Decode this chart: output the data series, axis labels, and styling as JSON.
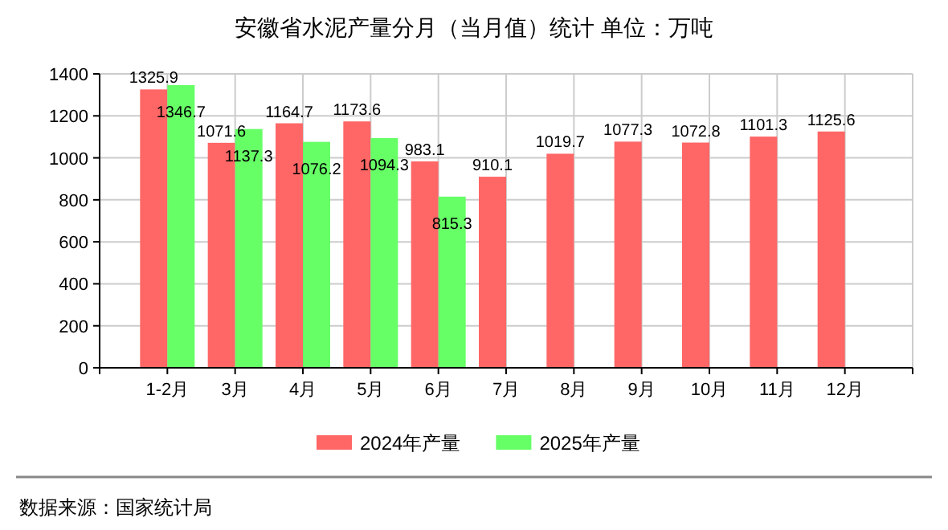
{
  "chart_data": {
    "type": "bar",
    "title": "安徽省水泥产量分月（当月值）统计  单位：万吨",
    "categories": [
      "1-2月",
      "3月",
      "4月",
      "5月",
      "6月",
      "7月",
      "8月",
      "9月",
      "10月",
      "11月",
      "12月"
    ],
    "series": [
      {
        "name": "2024年产量",
        "color": "#ff6666",
        "values": [
          1325.9,
          1071.6,
          1164.7,
          1173.6,
          983.1,
          910.1,
          1019.7,
          1077.3,
          1072.8,
          1101.3,
          1125.6
        ]
      },
      {
        "name": "2025年产量",
        "color": "#66ff66",
        "values": [
          1346.7,
          1137.3,
          1076.2,
          1094.3,
          815.3,
          null,
          null,
          null,
          null,
          null,
          null
        ]
      }
    ],
    "ylim": [
      0,
      1400
    ],
    "yticks": [
      0,
      200,
      400,
      600,
      800,
      1000,
      1200,
      1400
    ],
    "grid": true,
    "legend": "bottom",
    "data_labels": true,
    "annotations": [
      "数据来源：国家统计局"
    ]
  }
}
